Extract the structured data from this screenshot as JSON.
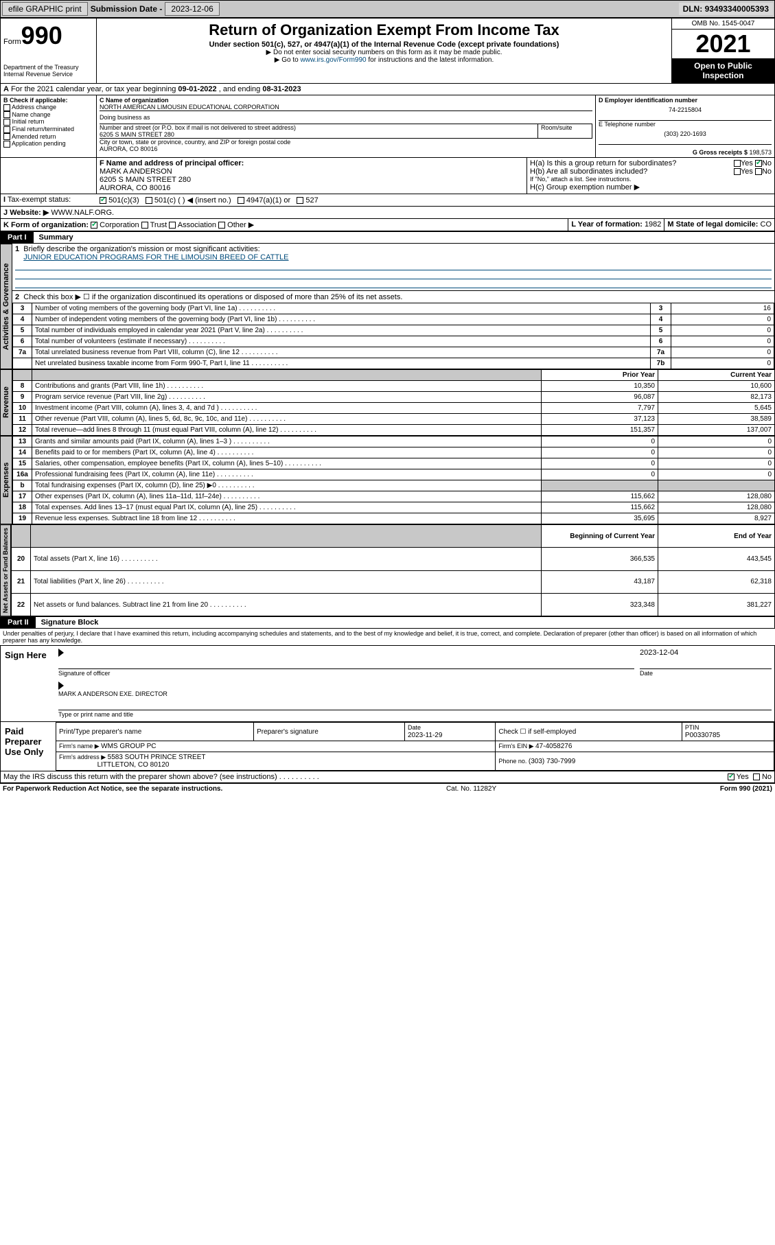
{
  "topbar": {
    "efile": "efile GRAPHIC print",
    "subdate_label": "Submission Date - ",
    "subdate": "2023-12-06",
    "dln_label": "DLN: ",
    "dln": "93493340005393"
  },
  "header": {
    "form_label": "Form",
    "form_no": "990",
    "dept": "Department of the Treasury\nInternal Revenue Service",
    "title": "Return of Organization Exempt From Income Tax",
    "sub1": "Under section 501(c), 527, or 4947(a)(1) of the Internal Revenue Code (except private foundations)",
    "sub2": "▶ Do not enter social security numbers on this form as it may be made public.",
    "sub3_pre": "▶ Go to ",
    "sub3_link": "www.irs.gov/Form990",
    "sub3_post": " for instructions and the latest information.",
    "omb": "OMB No. 1545-0047",
    "year": "2021",
    "open": "Open to Public Inspection"
  },
  "A": {
    "text": "For the 2021 calendar year, or tax year beginning ",
    "begin": "09-01-2022",
    "mid": " , and ending ",
    "end": "08-31-2023"
  },
  "B": {
    "label": "B Check if applicable:",
    "items": [
      "Address change",
      "Name change",
      "Initial return",
      "Final return/terminated",
      "Amended return",
      "Application pending"
    ]
  },
  "C": {
    "name_label": "C Name of organization",
    "name": "NORTH AMERICAN LIMOUSIN EDUCATIONAL CORPORATION",
    "dba_label": "Doing business as",
    "street_label": "Number and street (or P.O. box if mail is not delivered to street address)",
    "street": "6205 S MAIN STREET 280",
    "room_label": "Room/suite",
    "city_label": "City or town, state or province, country, and ZIP or foreign postal code",
    "city": "AURORA, CO  80016"
  },
  "D": {
    "label": "D Employer identification number",
    "value": "74-2215804"
  },
  "E": {
    "label": "E Telephone number",
    "value": "(303) 220-1693"
  },
  "G": {
    "label": "G Gross receipts $ ",
    "value": "198,573"
  },
  "F": {
    "label": "F Name and address of principal officer:",
    "name": "MARK A ANDERSON",
    "street": "6205 S MAIN STREET 280",
    "city": "AURORA, CO  80016"
  },
  "H": {
    "a": "H(a)  Is this a group return for subordinates?",
    "b": "H(b)  Are all subordinates included?",
    "b_note": "If \"No,\" attach a list. See instructions.",
    "c": "H(c)  Group exemption number ▶",
    "yes": "Yes",
    "no": "No"
  },
  "I": {
    "label": "Tax-exempt status:",
    "opts": [
      "501(c)(3)",
      "501(c) (  ) ◀ (insert no.)",
      "4947(a)(1) or",
      "527"
    ]
  },
  "J": {
    "label": "Website: ▶",
    "value": "WWW.NALF.ORG."
  },
  "K": {
    "label": "K Form of organization:",
    "opts": [
      "Corporation",
      "Trust",
      "Association",
      "Other ▶"
    ]
  },
  "L": {
    "label": "L Year of formation: ",
    "value": "1982"
  },
  "M": {
    "label": "M State of legal domicile: ",
    "value": "CO"
  },
  "part1": {
    "label": "Part I",
    "title": "Summary"
  },
  "summary": {
    "line1_label": "Briefly describe the organization's mission or most significant activities:",
    "line1_text": "JUNIOR EDUCATION PROGRAMS FOR THE LIMOUSIN BREED OF CATTLE",
    "line2": "Check this box ▶ ☐  if the organization discontinued its operations or disposed of more than 25% of its net assets.",
    "rows_ag": [
      {
        "n": "3",
        "t": "Number of voting members of the governing body (Part VI, line 1a)",
        "box": "3",
        "v": "16"
      },
      {
        "n": "4",
        "t": "Number of independent voting members of the governing body (Part VI, line 1b)",
        "box": "4",
        "v": "0"
      },
      {
        "n": "5",
        "t": "Total number of individuals employed in calendar year 2021 (Part V, line 2a)",
        "box": "5",
        "v": "0"
      },
      {
        "n": "6",
        "t": "Total number of volunteers (estimate if necessary)",
        "box": "6",
        "v": "0"
      },
      {
        "n": "7a",
        "t": "Total unrelated business revenue from Part VIII, column (C), line 12",
        "box": "7a",
        "v": "0"
      },
      {
        "n": "",
        "t": "Net unrelated business taxable income from Form 990-T, Part I, line 11",
        "box": "7b",
        "v": "0"
      }
    ],
    "hdr_prior": "Prior Year",
    "hdr_current": "Current Year",
    "rows_rev": [
      {
        "n": "8",
        "t": "Contributions and grants (Part VIII, line 1h)",
        "p": "10,350",
        "c": "10,600"
      },
      {
        "n": "9",
        "t": "Program service revenue (Part VIII, line 2g)",
        "p": "96,087",
        "c": "82,173"
      },
      {
        "n": "10",
        "t": "Investment income (Part VIII, column (A), lines 3, 4, and 7d )",
        "p": "7,797",
        "c": "5,645"
      },
      {
        "n": "11",
        "t": "Other revenue (Part VIII, column (A), lines 5, 6d, 8c, 9c, 10c, and 11e)",
        "p": "37,123",
        "c": "38,589"
      },
      {
        "n": "12",
        "t": "Total revenue—add lines 8 through 11 (must equal Part VIII, column (A), line 12)",
        "p": "151,357",
        "c": "137,007"
      }
    ],
    "rows_exp": [
      {
        "n": "13",
        "t": "Grants and similar amounts paid (Part IX, column (A), lines 1–3 )",
        "p": "0",
        "c": "0"
      },
      {
        "n": "14",
        "t": "Benefits paid to or for members (Part IX, column (A), line 4)",
        "p": "0",
        "c": "0"
      },
      {
        "n": "15",
        "t": "Salaries, other compensation, employee benefits (Part IX, column (A), lines 5–10)",
        "p": "0",
        "c": "0"
      },
      {
        "n": "16a",
        "t": "Professional fundraising fees (Part IX, column (A), line 11e)",
        "p": "0",
        "c": "0"
      },
      {
        "n": "b",
        "t": "Total fundraising expenses (Part IX, column (D), line 25) ▶0",
        "p": "",
        "c": "",
        "shade": true
      },
      {
        "n": "17",
        "t": "Other expenses (Part IX, column (A), lines 11a–11d, 11f–24e)",
        "p": "115,662",
        "c": "128,080"
      },
      {
        "n": "18",
        "t": "Total expenses. Add lines 13–17 (must equal Part IX, column (A), line 25)",
        "p": "115,662",
        "c": "128,080"
      },
      {
        "n": "19",
        "t": "Revenue less expenses. Subtract line 18 from line 12",
        "p": "35,695",
        "c": "8,927"
      }
    ],
    "hdr_begin": "Beginning of Current Year",
    "hdr_end": "End of Year",
    "rows_net": [
      {
        "n": "20",
        "t": "Total assets (Part X, line 16)",
        "p": "366,535",
        "c": "443,545"
      },
      {
        "n": "21",
        "t": "Total liabilities (Part X, line 26)",
        "p": "43,187",
        "c": "62,318"
      },
      {
        "n": "22",
        "t": "Net assets or fund balances. Subtract line 21 from line 20",
        "p": "323,348",
        "c": "381,227"
      }
    ]
  },
  "sides": {
    "ag": "Activities & Governance",
    "rev": "Revenue",
    "exp": "Expenses",
    "net": "Net Assets or Fund Balances"
  },
  "part2": {
    "label": "Part II",
    "title": "Signature Block"
  },
  "sig": {
    "decl": "Under penalties of perjury, I declare that I have examined this return, including accompanying schedules and statements, and to the best of my knowledge and belief, it is true, correct, and complete. Declaration of preparer (other than officer) is based on all information of which preparer has any knowledge.",
    "sign_here": "Sign Here",
    "sig_officer": "Signature of officer",
    "date_label": "Date",
    "date": "2023-12-04",
    "officer_name": "MARK A ANDERSON  EXE. DIRECTOR",
    "officer_title_label": "Type or print name and title",
    "paid": "Paid Preparer Use Only",
    "prep_name_label": "Print/Type preparer's name",
    "prep_sig_label": "Preparer's signature",
    "prep_date_label": "Date",
    "prep_date": "2023-11-29",
    "check_self": "Check ☐ if self-employed",
    "ptin_label": "PTIN",
    "ptin": "P00330785",
    "firm_name_label": "Firm's name    ▶ ",
    "firm_name": "WMS GROUP PC",
    "firm_ein_label": "Firm's EIN ▶ ",
    "firm_ein": "47-4058276",
    "firm_addr_label": "Firm's address ▶ ",
    "firm_addr": "5583 SOUTH PRINCE STREET",
    "firm_city": "LITTLETON, CO  80120",
    "phone_label": "Phone no. ",
    "phone": "(303) 730-7999",
    "may_discuss": "May the IRS discuss this return with the preparer shown above? (see instructions)"
  },
  "footer": {
    "left": "For Paperwork Reduction Act Notice, see the separate instructions.",
    "mid": "Cat. No. 11282Y",
    "right": "Form 990 (2021)"
  }
}
